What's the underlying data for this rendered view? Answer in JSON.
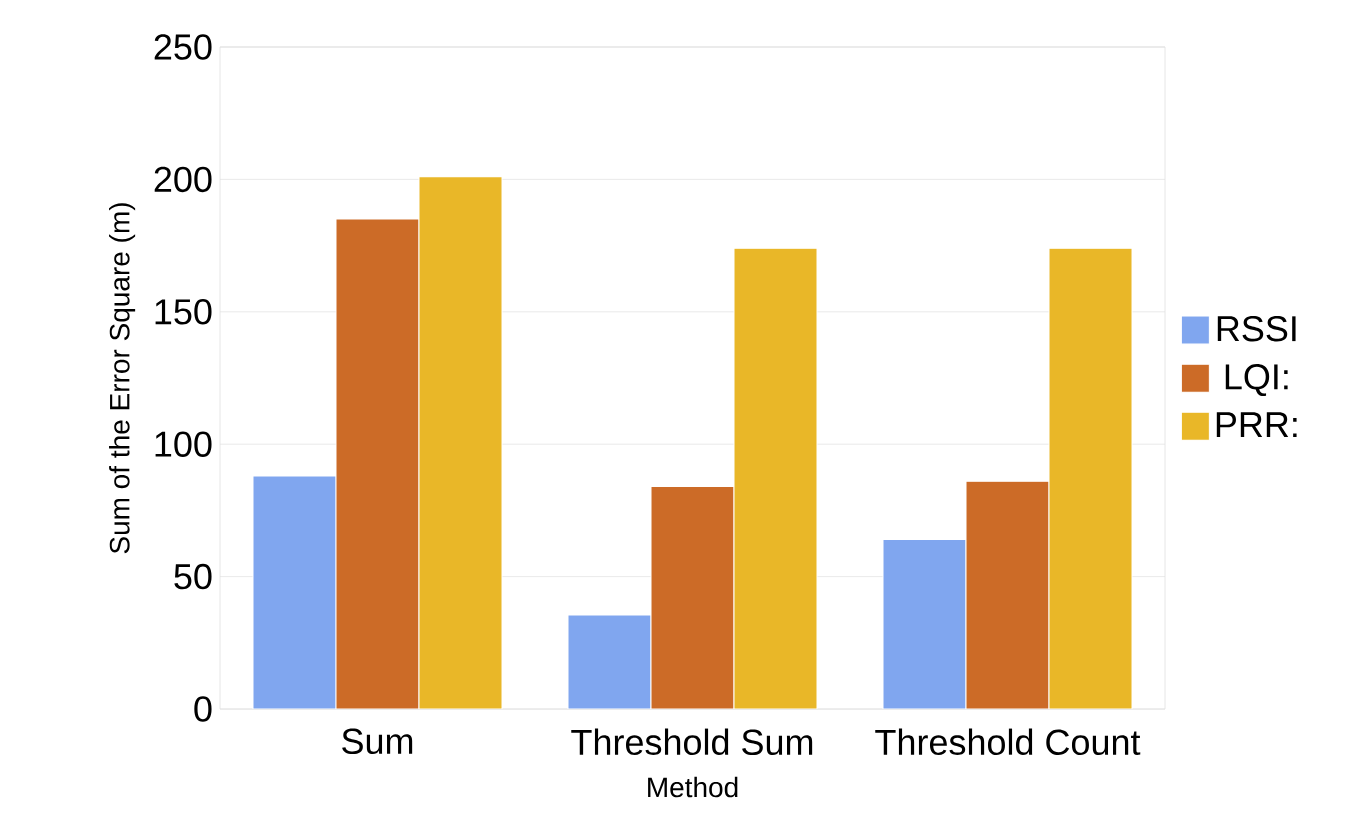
{
  "chart_data": {
    "type": "bar",
    "xlabel": "Method",
    "ylabel": "Sum of the Error Square (m)",
    "categories": [
      "Sum",
      "Threshold Sum",
      "Threshold Count"
    ],
    "series": [
      {
        "name": "RSSI",
        "color": "#80a6ef",
        "values": [
          88,
          35.5,
          64
        ]
      },
      {
        "name": "LQI:",
        "color": "#cc6b27",
        "values": [
          185,
          84,
          86
        ]
      },
      {
        "name": "PRR:",
        "color": "#e9b728",
        "values": [
          201,
          174,
          174
        ]
      }
    ],
    "ylim": [
      0,
      250
    ],
    "yticks": [
      0,
      50,
      100,
      150,
      200,
      250
    ],
    "grid": "y",
    "legend": "right"
  }
}
